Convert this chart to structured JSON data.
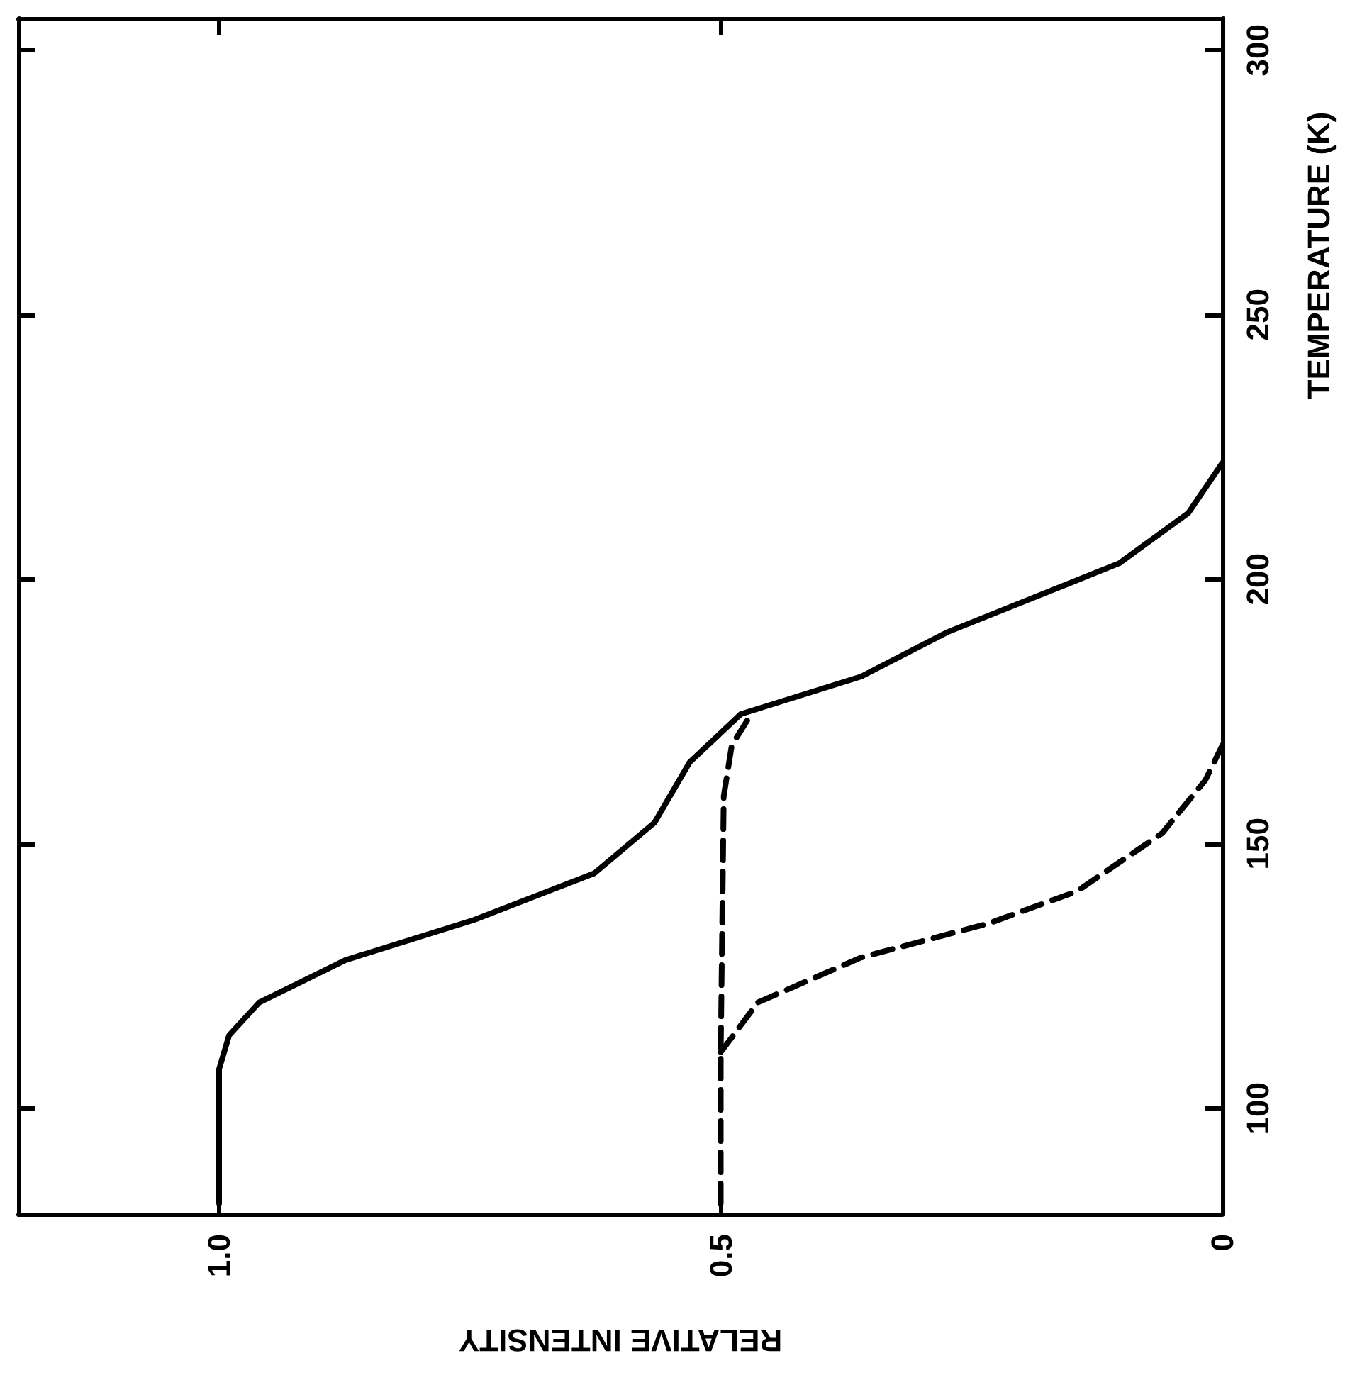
{
  "chart_data": {
    "type": "line",
    "xlabel": "RELATIVE INTENSITY",
    "ylabel": "TEMPERATURE (K)",
    "xlim": [
      1.2,
      0
    ],
    "xticks": [
      {
        "value": 1,
        "label": "1.0"
      },
      0.5,
      0
    ],
    "ylim": [
      80,
      306
    ],
    "yticks": [
      100,
      150,
      200,
      250,
      300
    ],
    "marker": "none",
    "series": [
      {
        "color": "#000000",
        "line_style": "solid",
        "x": [
          1.0,
          1.0,
          0.99,
          0.96,
          0.874,
          0.746,
          0.626,
          0.566,
          0.531,
          0.48,
          0.36,
          0.274,
          0.103,
          0.034,
          0
        ],
        "values": [
          82,
          107.4,
          113.8,
          120,
          128,
          135.6,
          144.4,
          154,
          165.4,
          174.5,
          181.6,
          190,
          203,
          212.5,
          222
        ]
      },
      {
        "color": "#000000",
        "line_style": "dashed",
        "x": [
          0.5,
          0.5,
          0.497,
          0.489,
          0.468
        ],
        "values": [
          82,
          110.6,
          159,
          168.6,
          175
        ]
      },
      {
        "color": "#000000",
        "line_style": "dashed",
        "x": [
          0.5,
          0.463,
          0.36,
          0.232,
          0.145,
          0.06,
          0.017,
          0
        ],
        "values": [
          110.6,
          120,
          128.5,
          135,
          141,
          152,
          162,
          168.6
        ]
      }
    ]
  }
}
